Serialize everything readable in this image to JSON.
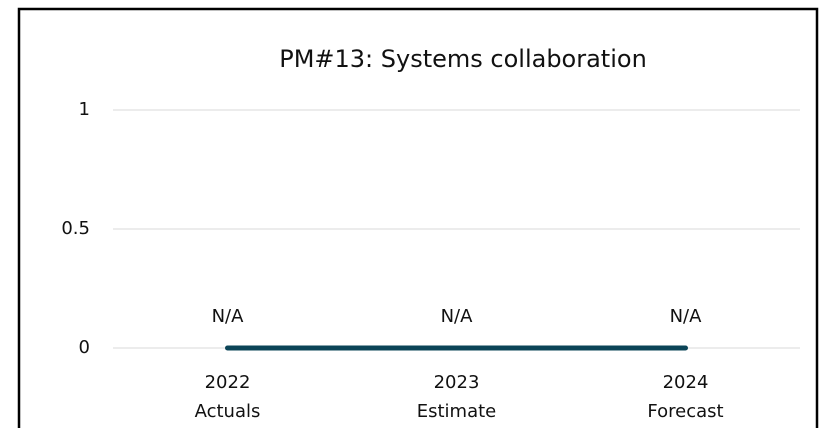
{
  "chart_data": {
    "type": "line",
    "title": "PM#13: Systems collaboration",
    "categories": [
      [
        "2022",
        "Actuals"
      ],
      [
        "2023",
        "Estimate"
      ],
      [
        "2024",
        "Forecast"
      ]
    ],
    "values": [
      0,
      0,
      0
    ],
    "value_labels": [
      "N/A",
      "N/A",
      "N/A"
    ],
    "color": "#0b4457",
    "ylim": [
      0,
      1
    ],
    "yticks": [
      0,
      0.5,
      1
    ],
    "grid": true
  }
}
